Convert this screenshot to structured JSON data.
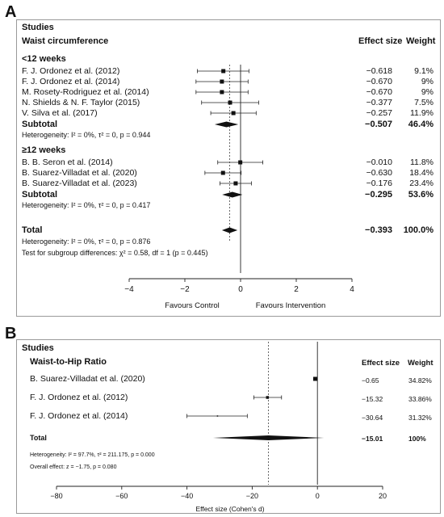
{
  "panelA": {
    "letter": "A",
    "studies_header": "Studies",
    "outcome": "Waist circumference",
    "col_effect": "Effect size",
    "col_weight": "Weight",
    "groups": [
      {
        "label": "<12 weeks",
        "studies": [
          {
            "name": "F. J. Ordonez et al. (2012)",
            "effect_text": "−0.618",
            "weight": "9.1%",
            "est": -0.618,
            "lo": -1.55,
            "hi": 0.3
          },
          {
            "name": "F. J. Ordonez et al. (2014)",
            "effect_text": "−0.670",
            "weight": "9%",
            "est": -0.67,
            "lo": -1.6,
            "hi": 0.27
          },
          {
            "name": "M. Rosety-Rodriguez et al. (2014)",
            "effect_text": "−0.670",
            "weight": "9%",
            "est": -0.67,
            "lo": -1.6,
            "hi": 0.27
          },
          {
            "name": "N. Shields & N. F. Taylor (2015)",
            "effect_text": "−0.377",
            "weight": "7.5%",
            "est": -0.377,
            "lo": -1.4,
            "hi": 0.65
          },
          {
            "name": "V. Silva et al. (2017)",
            "effect_text": "−0.257",
            "weight": "11.9%",
            "est": -0.257,
            "lo": -1.07,
            "hi": 0.56
          }
        ],
        "subtotal_label": "Subtotal",
        "subtotal_effect": "−0.507",
        "subtotal_weight": "46.4%",
        "subtotal_est": -0.507,
        "subtotal_lo": -0.93,
        "subtotal_hi": -0.08,
        "heterogeneity": "Heterogeneity: I² = 0%, τ² = 0, p = 0.944"
      },
      {
        "label": "≥12 weeks",
        "studies": [
          {
            "name": "B. B. Seron et al. (2014)",
            "effect_text": "−0.010",
            "weight": "11.8%",
            "est": -0.01,
            "lo": -0.82,
            "hi": 0.8
          },
          {
            "name": "B. Suarez-Villadat et al. (2020)",
            "effect_text": "−0.630",
            "weight": "18.4%",
            "est": -0.63,
            "lo": -1.28,
            "hi": 0.02
          },
          {
            "name": "B. Suarez-Villadat et al. (2023)",
            "effect_text": "−0.176",
            "weight": "23.4%",
            "est": -0.176,
            "lo": -0.74,
            "hi": 0.39
          }
        ],
        "subtotal_label": "Subtotal",
        "subtotal_effect": "−0.295",
        "subtotal_weight": "53.6%",
        "subtotal_est": -0.295,
        "subtotal_lo": -0.66,
        "subtotal_hi": 0.07,
        "heterogeneity": "Heterogeneity: I² = 0%, τ² = 0, p = 0.417"
      }
    ],
    "total_label": "Total",
    "total_effect": "−0.393",
    "total_weight": "100.0%",
    "total_est": -0.393,
    "total_lo": -0.67,
    "total_hi": -0.11,
    "total_heterogeneity": "Heterogeneity: I² = 0%, τ² = 0, p = 0.876",
    "subgroup_test": "Test for subgroup differences: χ² = 0.58, df = 1 (p = 0.445)",
    "axis_ticks": [
      -4,
      -2,
      0,
      2,
      4
    ],
    "axis_tick_labels": [
      "−4",
      "−2",
      "0",
      "2",
      "4"
    ],
    "xlim": [
      -4,
      4
    ],
    "favours_left": "Favours Control",
    "favours_right": "Favours Intervention"
  },
  "panelB": {
    "letter": "B",
    "studies_header": "Studies",
    "outcome": "Waist-to-Hip Ratio",
    "col_effect": "Effect size",
    "col_weight": "Weight",
    "studies": [
      {
        "name": "B. Suarez-Villadat et al. (2020)",
        "effect_text": "−0.65",
        "weight": "34.82%",
        "est": -0.65,
        "lo": -1.2,
        "hi": -0.1
      },
      {
        "name": "F. J. Ordonez et al. (2012)",
        "effect_text": "−15.32",
        "weight": "33.86%",
        "est": -15.32,
        "lo": -19.5,
        "hi": -11.0
      },
      {
        "name": "F. J. Ordonez et al. (2014)",
        "effect_text": "−30.64",
        "weight": "31.32%",
        "est": -30.64,
        "lo": -40.0,
        "hi": -21.5
      }
    ],
    "total_label": "Total",
    "total_effect": "−15.01",
    "total_weight": "100%",
    "total_est": -15.01,
    "total_lo": -32.0,
    "total_hi": 2.0,
    "heterogeneity": "Heterogeneity: I² = 97.7%, τ² = 211.175, p = 0.000",
    "overall_effect": "Overall effect: z = −1.75, p = 0.080",
    "axis_ticks": [
      -80,
      -60,
      -40,
      -20,
      0,
      20
    ],
    "axis_tick_labels": [
      "−80",
      "−60",
      "−40",
      "−20",
      "0",
      "20"
    ],
    "xlim": [
      -80,
      20
    ],
    "xlabel": "Effect size (Cohen's d)"
  },
  "chart_data": [
    {
      "type": "forest",
      "outcome": "Waist circumference",
      "xlim": [
        -4,
        4
      ],
      "studies": [
        {
          "name": "F. J. Ordonez et al. (2012)",
          "group": "<12 weeks",
          "effect": -0.618,
          "weight": 9.1
        },
        {
          "name": "F. J. Ordonez et al. (2014)",
          "group": "<12 weeks",
          "effect": -0.67,
          "weight": 9.0
        },
        {
          "name": "M. Rosety-Rodriguez et al. (2014)",
          "group": "<12 weeks",
          "effect": -0.67,
          "weight": 9.0
        },
        {
          "name": "N. Shields & N. F. Taylor (2015)",
          "group": "<12 weeks",
          "effect": -0.377,
          "weight": 7.5
        },
        {
          "name": "V. Silva et al. (2017)",
          "group": "<12 weeks",
          "effect": -0.257,
          "weight": 11.9
        },
        {
          "name": "B. B. Seron et al. (2014)",
          "group": "≥12 weeks",
          "effect": -0.01,
          "weight": 11.8
        },
        {
          "name": "B. Suarez-Villadat et al. (2020)",
          "group": "≥12 weeks",
          "effect": -0.63,
          "weight": 18.4
        },
        {
          "name": "B. Suarez-Villadat et al. (2023)",
          "group": "≥12 weeks",
          "effect": -0.176,
          "weight": 23.4
        }
      ],
      "subtotals": [
        {
          "group": "<12 weeks",
          "effect": -0.507,
          "weight": 46.4
        },
        {
          "group": "≥12 weeks",
          "effect": -0.295,
          "weight": 53.6
        }
      ],
      "total": {
        "effect": -0.393,
        "weight": 100.0
      }
    },
    {
      "type": "forest",
      "outcome": "Waist-to-Hip Ratio",
      "xlim": [
        -80,
        20
      ],
      "xlabel": "Effect size (Cohen's d)",
      "studies": [
        {
          "name": "B. Suarez-Villadat et al. (2020)",
          "effect": -0.65,
          "weight": 34.82
        },
        {
          "name": "F. J. Ordonez et al. (2012)",
          "effect": -15.32,
          "weight": 33.86
        },
        {
          "name": "F. J. Ordonez et al. (2014)",
          "effect": -30.64,
          "weight": 31.32
        }
      ],
      "total": {
        "effect": -15.01,
        "weight": 100
      }
    }
  ]
}
